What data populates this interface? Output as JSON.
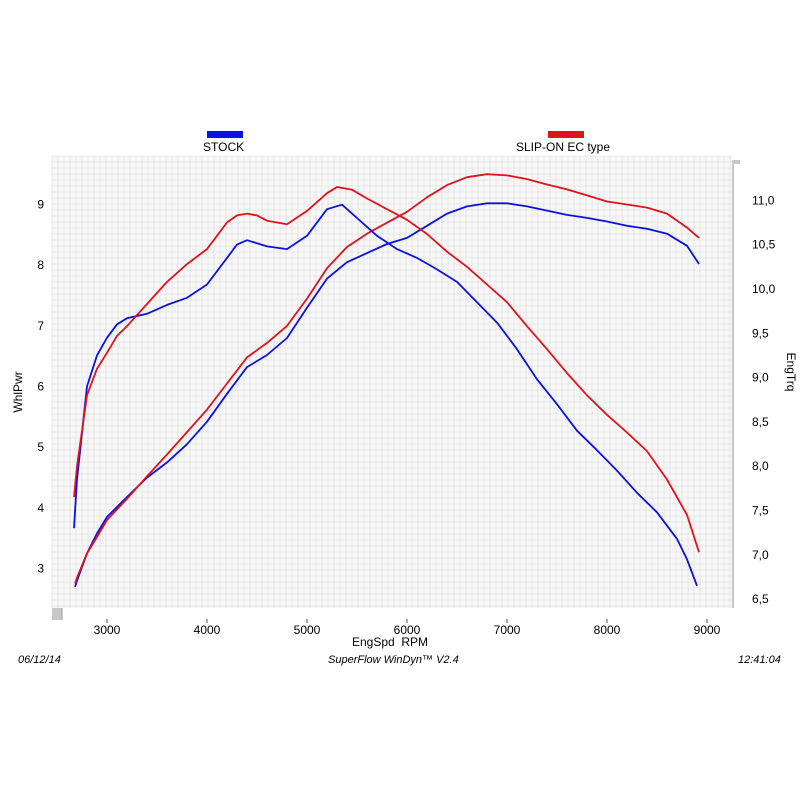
{
  "legend": {
    "stock_label": "STOCK",
    "slipon_label": "SLIP-ON EC type"
  },
  "footer": {
    "date": "06/12/14",
    "software": "SuperFlow WinDyn™ V2.4",
    "time": "12:41:04"
  },
  "chart_data": {
    "type": "line",
    "xlabel": "EngSpd  RPM",
    "ylabel_left": "WhlPwr",
    "ylabel_right": "EngTrq",
    "xlim": [
      2450,
      9250
    ],
    "ylim_left": [
      2.35,
      9.8
    ],
    "ylim_right": [
      6.4,
      11.5
    ],
    "x_ticks": [
      3000,
      4000,
      5000,
      6000,
      7000,
      8000,
      9000
    ],
    "y_ticks_left": [
      3,
      4,
      5,
      6,
      7,
      8,
      9
    ],
    "y_ticks_right": [
      "6,5",
      "7,0",
      "7,5",
      "8,0",
      "8,5",
      "9,0",
      "9,5",
      "10,0",
      "10,5",
      "11,0"
    ],
    "y_ticks_right_values": [
      6.5,
      7.0,
      7.5,
      8.0,
      8.5,
      9.0,
      9.5,
      10.0,
      10.5,
      11.0
    ],
    "grid": true,
    "series": [
      {
        "name": "STOCK",
        "measure": "power",
        "axis": "left",
        "color": "#0b12e0",
        "points": [
          [
            2680,
            2.7
          ],
          [
            2700,
            2.8
          ],
          [
            2800,
            3.25
          ],
          [
            2900,
            3.58
          ],
          [
            3000,
            3.85
          ],
          [
            3200,
            4.18
          ],
          [
            3400,
            4.5
          ],
          [
            3600,
            4.75
          ],
          [
            3800,
            5.05
          ],
          [
            4000,
            5.42
          ],
          [
            4200,
            5.88
          ],
          [
            4400,
            6.32
          ],
          [
            4600,
            6.52
          ],
          [
            4800,
            6.8
          ],
          [
            5000,
            7.3
          ],
          [
            5200,
            7.78
          ],
          [
            5400,
            8.05
          ],
          [
            5600,
            8.2
          ],
          [
            5800,
            8.35
          ],
          [
            6000,
            8.45
          ],
          [
            6200,
            8.65
          ],
          [
            6400,
            8.85
          ],
          [
            6600,
            8.97
          ],
          [
            6800,
            9.02
          ],
          [
            7000,
            9.02
          ],
          [
            7200,
            8.97
          ],
          [
            7400,
            8.9
          ],
          [
            7600,
            8.83
          ],
          [
            7800,
            8.78
          ],
          [
            8000,
            8.72
          ],
          [
            8200,
            8.65
          ],
          [
            8400,
            8.6
          ],
          [
            8600,
            8.52
          ],
          [
            8800,
            8.32
          ],
          [
            8920,
            8.02
          ]
        ]
      },
      {
        "name": "SLIP-ON EC type",
        "measure": "power",
        "axis": "left",
        "color": "#e0121b",
        "points": [
          [
            2680,
            2.75
          ],
          [
            2700,
            2.85
          ],
          [
            2800,
            3.25
          ],
          [
            2900,
            3.52
          ],
          [
            3000,
            3.8
          ],
          [
            3200,
            4.15
          ],
          [
            3400,
            4.52
          ],
          [
            3600,
            4.88
          ],
          [
            3800,
            5.25
          ],
          [
            4000,
            5.62
          ],
          [
            4200,
            6.05
          ],
          [
            4400,
            6.48
          ],
          [
            4600,
            6.72
          ],
          [
            4800,
            7.0
          ],
          [
            5000,
            7.45
          ],
          [
            5200,
            7.95
          ],
          [
            5400,
            8.3
          ],
          [
            5600,
            8.52
          ],
          [
            5800,
            8.7
          ],
          [
            6000,
            8.88
          ],
          [
            6200,
            9.12
          ],
          [
            6400,
            9.32
          ],
          [
            6600,
            9.45
          ],
          [
            6800,
            9.5
          ],
          [
            7000,
            9.48
          ],
          [
            7200,
            9.42
          ],
          [
            7400,
            9.33
          ],
          [
            7600,
            9.25
          ],
          [
            7800,
            9.15
          ],
          [
            8000,
            9.05
          ],
          [
            8200,
            9.0
          ],
          [
            8400,
            8.95
          ],
          [
            8600,
            8.85
          ],
          [
            8800,
            8.62
          ],
          [
            8920,
            8.45
          ]
        ]
      },
      {
        "name": "STOCK",
        "measure": "torque",
        "axis": "right",
        "color": "#0b12e0",
        "points": [
          [
            2670,
            7.3
          ],
          [
            2700,
            7.85
          ],
          [
            2800,
            8.9
          ],
          [
            2900,
            9.25
          ],
          [
            3000,
            9.45
          ],
          [
            3100,
            9.6
          ],
          [
            3200,
            9.67
          ],
          [
            3400,
            9.72
          ],
          [
            3600,
            9.82
          ],
          [
            3800,
            9.9
          ],
          [
            4000,
            10.05
          ],
          [
            4200,
            10.35
          ],
          [
            4300,
            10.5
          ],
          [
            4400,
            10.55
          ],
          [
            4600,
            10.48
          ],
          [
            4800,
            10.45
          ],
          [
            5000,
            10.6
          ],
          [
            5200,
            10.9
          ],
          [
            5350,
            10.95
          ],
          [
            5500,
            10.8
          ],
          [
            5700,
            10.6
          ],
          [
            5900,
            10.45
          ],
          [
            6100,
            10.35
          ],
          [
            6300,
            10.22
          ],
          [
            6500,
            10.08
          ],
          [
            6700,
            9.85
          ],
          [
            6900,
            9.62
          ],
          [
            7100,
            9.32
          ],
          [
            7300,
            8.98
          ],
          [
            7500,
            8.7
          ],
          [
            7700,
            8.4
          ],
          [
            7900,
            8.18
          ],
          [
            8100,
            7.95
          ],
          [
            8300,
            7.7
          ],
          [
            8500,
            7.48
          ],
          [
            8700,
            7.18
          ],
          [
            8800,
            6.95
          ],
          [
            8900,
            6.65
          ]
        ]
      },
      {
        "name": "SLIP-ON EC type",
        "measure": "torque",
        "axis": "right",
        "color": "#e0121b",
        "points": [
          [
            2670,
            7.65
          ],
          [
            2700,
            8.0
          ],
          [
            2800,
            8.8
          ],
          [
            2900,
            9.1
          ],
          [
            3000,
            9.28
          ],
          [
            3100,
            9.47
          ],
          [
            3200,
            9.58
          ],
          [
            3400,
            9.83
          ],
          [
            3600,
            10.08
          ],
          [
            3800,
            10.28
          ],
          [
            4000,
            10.45
          ],
          [
            4200,
            10.75
          ],
          [
            4300,
            10.83
          ],
          [
            4400,
            10.85
          ],
          [
            4500,
            10.83
          ],
          [
            4600,
            10.77
          ],
          [
            4800,
            10.73
          ],
          [
            5000,
            10.88
          ],
          [
            5200,
            11.08
          ],
          [
            5300,
            11.15
          ],
          [
            5450,
            11.12
          ],
          [
            5600,
            11.02
          ],
          [
            5800,
            10.9
          ],
          [
            6000,
            10.78
          ],
          [
            6200,
            10.62
          ],
          [
            6400,
            10.42
          ],
          [
            6600,
            10.25
          ],
          [
            6800,
            10.05
          ],
          [
            7000,
            9.85
          ],
          [
            7200,
            9.58
          ],
          [
            7400,
            9.32
          ],
          [
            7600,
            9.05
          ],
          [
            7800,
            8.8
          ],
          [
            8000,
            8.58
          ],
          [
            8200,
            8.38
          ],
          [
            8400,
            8.17
          ],
          [
            8600,
            7.85
          ],
          [
            8800,
            7.45
          ],
          [
            8920,
            7.03
          ]
        ]
      }
    ]
  }
}
